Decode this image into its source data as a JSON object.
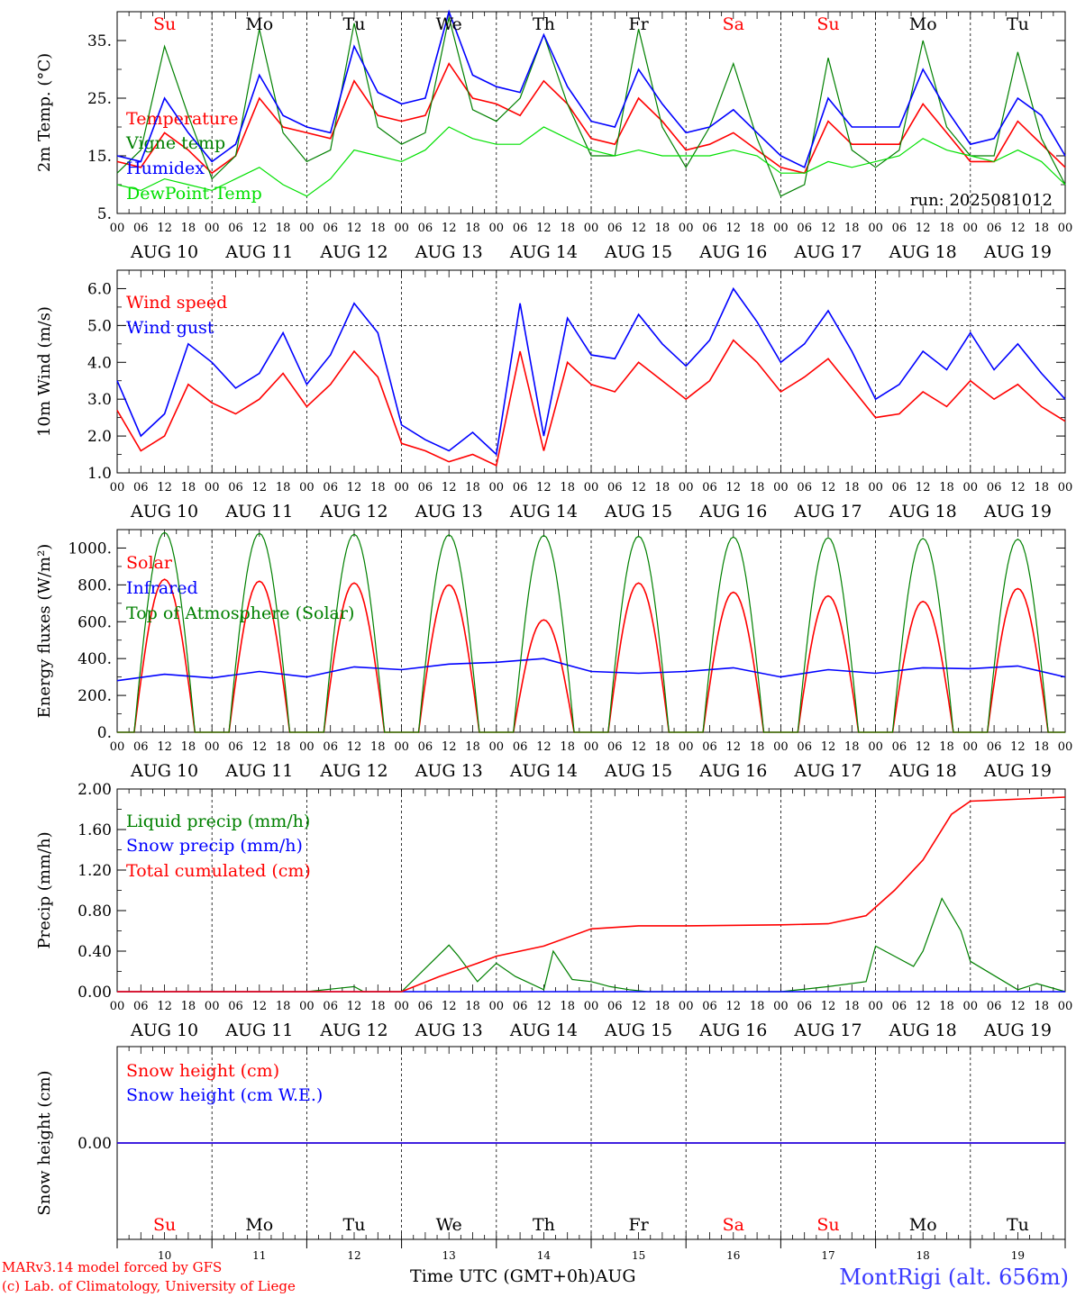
{
  "run_label": "run: 2025081012",
  "days": [
    "Su",
    "Mo",
    "Tu",
    "We",
    "Th",
    "Fr",
    "Sa",
    "Su",
    "Mo",
    "Tu"
  ],
  "weekend_days": [
    "Su",
    "Sa"
  ],
  "dates": [
    "AUG 10",
    "AUG 11",
    "AUG 12",
    "AUG 13",
    "AUG 14",
    "AUG 15",
    "AUG 16",
    "AUG 17",
    "AUG 18",
    "AUG 19"
  ],
  "day_numbers": [
    "10",
    "11",
    "12",
    "13",
    "14",
    "15",
    "16",
    "17",
    "18",
    "19"
  ],
  "hour_ticks": [
    "00",
    "06",
    "12",
    "18"
  ],
  "final_hour_tick": "00",
  "footer": {
    "model_line": "MARv3.14 model forced by GFS",
    "credit_line": "(c) Lab. of Climatology, University of Liege",
    "axis_title": "Time UTC (GMT+0h)",
    "axis_month": "AUG",
    "site": "MontRigi (alt. 656m)"
  },
  "colors": {
    "red": "#ff0000",
    "green": "#008000",
    "blue": "#0000ff",
    "lightgreen": "#00e000",
    "weekend": "#ff0000",
    "axis": "#000000"
  },
  "chart_data": [
    {
      "type": "line",
      "ylabel": "2m Temp. (°C)",
      "ylim": [
        5,
        40
      ],
      "yticks": [
        "5.",
        "15.",
        "25.",
        "35."
      ],
      "ytick_values": [
        5,
        15,
        25,
        35
      ],
      "x_unit": "days since AUG 10 00 UTC",
      "series": [
        {
          "name": "Temperature",
          "color": "#ff0000",
          "x": [
            0,
            0.25,
            0.5,
            0.75,
            1,
            1.25,
            1.5,
            1.75,
            2,
            2.25,
            2.5,
            2.75,
            3,
            3.25,
            3.5,
            3.75,
            4,
            4.25,
            4.5,
            4.75,
            5,
            5.25,
            5.5,
            5.75,
            6,
            6.25,
            6.5,
            6.75,
            7,
            7.25,
            7.5,
            7.75,
            8,
            8.25,
            8.5,
            8.75,
            9,
            9.25,
            9.5,
            9.75,
            10
          ],
          "values": [
            14,
            13,
            19,
            16,
            12,
            15,
            25,
            20,
            19,
            18,
            28,
            22,
            21,
            22,
            31,
            25,
            24,
            22,
            28,
            24,
            18,
            17,
            25,
            21,
            16,
            17,
            19,
            16,
            13,
            12,
            21,
            17,
            17,
            17,
            24,
            19,
            14,
            14,
            21,
            17,
            13
          ]
        },
        {
          "name": "Vigne temp",
          "color": "#008000",
          "x": [
            0,
            0.25,
            0.5,
            0.75,
            1,
            1.25,
            1.5,
            1.75,
            2,
            2.25,
            2.5,
            2.75,
            3,
            3.25,
            3.5,
            3.75,
            4,
            4.25,
            4.5,
            4.75,
            5,
            5.25,
            5.5,
            5.75,
            6,
            6.25,
            6.5,
            6.75,
            7,
            7.25,
            7.5,
            7.75,
            8,
            8.25,
            8.5,
            8.75,
            9,
            9.25,
            9.5,
            9.75,
            10
          ],
          "values": [
            12,
            16,
            34,
            22,
            11,
            15,
            37,
            19,
            14,
            16,
            38,
            20,
            17,
            19,
            39,
            23,
            21,
            25,
            36,
            24,
            15,
            15,
            37,
            20,
            13,
            20,
            31,
            18,
            8,
            10,
            32,
            16,
            13,
            16,
            35,
            20,
            15,
            15,
            33,
            18,
            10
          ]
        },
        {
          "name": "Humidex",
          "color": "#0000ff",
          "x": [
            0,
            0.25,
            0.5,
            0.75,
            1,
            1.25,
            1.5,
            1.75,
            2,
            2.25,
            2.5,
            2.75,
            3,
            3.25,
            3.5,
            3.75,
            4,
            4.25,
            4.5,
            4.75,
            5,
            5.25,
            5.5,
            5.75,
            6,
            6.25,
            6.5,
            6.75,
            7,
            7.25,
            7.5,
            7.75,
            8,
            8.25,
            8.5,
            8.75,
            9,
            9.25,
            9.5,
            9.75,
            10
          ],
          "values": [
            15,
            14,
            25,
            19,
            14,
            17,
            29,
            22,
            20,
            19,
            34,
            26,
            24,
            25,
            40,
            29,
            27,
            26,
            36,
            27,
            21,
            20,
            30,
            24,
            19,
            20,
            23,
            19,
            15,
            13,
            25,
            20,
            20,
            20,
            30,
            23,
            17,
            18,
            25,
            22,
            15
          ]
        },
        {
          "name": "DewPoint Temp",
          "color": "#00e000",
          "x": [
            0,
            0.25,
            0.5,
            0.75,
            1,
            1.25,
            1.5,
            1.75,
            2,
            2.25,
            2.5,
            2.75,
            3,
            3.25,
            3.5,
            3.75,
            4,
            4.25,
            4.5,
            4.75,
            5,
            5.25,
            5.5,
            5.75,
            6,
            6.25,
            6.5,
            6.75,
            7,
            7.25,
            7.5,
            7.75,
            8,
            8.25,
            8.5,
            8.75,
            9,
            9.25,
            9.5,
            9.75,
            10
          ],
          "values": [
            10,
            9,
            11,
            10,
            9,
            11,
            13,
            10,
            8,
            11,
            16,
            15,
            14,
            16,
            20,
            18,
            17,
            17,
            20,
            18,
            16,
            15,
            16,
            15,
            15,
            15,
            16,
            15,
            12,
            12,
            14,
            13,
            14,
            15,
            18,
            16,
            15,
            14,
            16,
            14,
            10
          ]
        }
      ]
    },
    {
      "type": "line",
      "ylabel": "10m Wind (m/s)",
      "ylim": [
        1,
        6.5
      ],
      "yticks": [
        "1.0",
        "2.0",
        "3.0",
        "4.0",
        "5.0",
        "6.0"
      ],
      "ytick_values": [
        1,
        2,
        3,
        4,
        5,
        6
      ],
      "hline": 5,
      "x_unit": "days since AUG 10 00 UTC",
      "series": [
        {
          "name": "Wind speed",
          "color": "#ff0000",
          "x": [
            0,
            0.25,
            0.5,
            0.75,
            1,
            1.25,
            1.5,
            1.75,
            2,
            2.25,
            2.5,
            2.75,
            3,
            3.25,
            3.5,
            3.75,
            4,
            4.25,
            4.5,
            4.75,
            5,
            5.25,
            5.5,
            5.75,
            6,
            6.25,
            6.5,
            6.75,
            7,
            7.25,
            7.5,
            7.75,
            8,
            8.25,
            8.5,
            8.75,
            9,
            9.25,
            9.5,
            9.75,
            10
          ],
          "values": [
            2.7,
            1.6,
            2.0,
            3.4,
            2.9,
            2.6,
            3.0,
            3.7,
            2.8,
            3.4,
            4.3,
            3.6,
            1.8,
            1.6,
            1.3,
            1.5,
            1.2,
            4.3,
            1.6,
            4.0,
            3.4,
            3.2,
            4.0,
            3.5,
            3.0,
            3.5,
            4.6,
            4.0,
            3.2,
            3.6,
            4.1,
            3.3,
            2.5,
            2.6,
            3.2,
            2.8,
            3.5,
            3.0,
            3.4,
            2.8,
            2.4
          ]
        },
        {
          "name": "Wind gust",
          "color": "#0000ff",
          "x": [
            0,
            0.25,
            0.5,
            0.75,
            1,
            1.25,
            1.5,
            1.75,
            2,
            2.25,
            2.5,
            2.75,
            3,
            3.25,
            3.5,
            3.75,
            4,
            4.25,
            4.5,
            4.75,
            5,
            5.25,
            5.5,
            5.75,
            6,
            6.25,
            6.5,
            6.75,
            7,
            7.25,
            7.5,
            7.75,
            8,
            8.25,
            8.5,
            8.75,
            9,
            9.25,
            9.5,
            9.75,
            10
          ],
          "values": [
            3.5,
            2.0,
            2.6,
            4.5,
            4.0,
            3.3,
            3.7,
            4.8,
            3.4,
            4.2,
            5.6,
            4.8,
            2.3,
            1.9,
            1.6,
            2.1,
            1.5,
            5.6,
            2.0,
            5.2,
            4.2,
            4.1,
            5.3,
            4.5,
            3.9,
            4.6,
            6.0,
            5.1,
            4.0,
            4.5,
            5.4,
            4.3,
            3.0,
            3.4,
            4.3,
            3.8,
            4.8,
            3.8,
            4.5,
            3.7,
            3.0
          ]
        }
      ]
    },
    {
      "type": "line",
      "ylabel": "Energy fluxes (W/m²)",
      "ylim": [
        0,
        1100
      ],
      "yticks": [
        "0.",
        "200.",
        "400.",
        "600.",
        "800.",
        "1000."
      ],
      "ytick_values": [
        0,
        200,
        400,
        600,
        800,
        1000
      ],
      "x_unit": "days since AUG 10 00 UTC",
      "series": [
        {
          "name": "Solar",
          "color": "#ff0000",
          "daily_peaks": [
            830,
            820,
            810,
            800,
            610,
            810,
            760,
            740,
            710,
            780
          ]
        },
        {
          "name": "Infrared",
          "color": "#0000ff",
          "x": [
            0,
            0.5,
            1,
            1.5,
            2,
            2.5,
            3,
            3.5,
            4,
            4.5,
            5,
            5.5,
            6,
            6.5,
            7,
            7.5,
            8,
            8.5,
            9,
            9.5,
            10
          ],
          "values": [
            280,
            315,
            295,
            330,
            300,
            355,
            340,
            370,
            380,
            400,
            330,
            320,
            330,
            350,
            300,
            340,
            320,
            350,
            345,
            360,
            300
          ]
        },
        {
          "name": "Top of Atmosphere (Solar)",
          "color": "#008000",
          "daily_peaks": [
            1085,
            1080,
            1075,
            1072,
            1068,
            1064,
            1060,
            1056,
            1052,
            1048
          ]
        }
      ]
    },
    {
      "type": "line",
      "ylabel": "Precip (mm/h)",
      "ylim": [
        0,
        2
      ],
      "yticks": [
        "0.00",
        "0.40",
        "0.80",
        "1.20",
        "1.60",
        "2.00"
      ],
      "ytick_values": [
        0,
        0.4,
        0.8,
        1.2,
        1.6,
        2.0
      ],
      "x_unit": "days since AUG 10 00 UTC",
      "series": [
        {
          "name": "Liquid precip (mm/h)",
          "color": "#008000",
          "x": [
            0,
            2.0,
            2.5,
            2.6,
            3.0,
            3.5,
            3.6,
            3.8,
            4.0,
            4.2,
            4.5,
            4.6,
            4.8,
            5.0,
            5.2,
            5.4,
            5.6,
            6.0,
            7.0,
            7.5,
            7.9,
            8.0,
            8.2,
            8.4,
            8.5,
            8.7,
            8.9,
            9.0,
            9.5,
            9.7,
            10
          ],
          "values": [
            0,
            0,
            0.05,
            0,
            0,
            0.46,
            0.35,
            0.1,
            0.28,
            0.15,
            0.02,
            0.4,
            0.12,
            0.1,
            0.05,
            0.02,
            0,
            0,
            0,
            0.05,
            0.1,
            0.45,
            0.35,
            0.25,
            0.4,
            0.92,
            0.6,
            0.3,
            0.02,
            0.08,
            0
          ]
        },
        {
          "name": "Snow precip (mm/h)",
          "color": "#0000ff",
          "x": [
            0,
            10
          ],
          "values": [
            0,
            0
          ]
        },
        {
          "name": "Total cumulated (cm)",
          "color": "#ff0000",
          "x": [
            0,
            3.0,
            3.4,
            3.8,
            4.0,
            4.5,
            5.0,
            5.5,
            6.0,
            7.0,
            7.5,
            7.9,
            8.2,
            8.5,
            8.8,
            9.0,
            10
          ],
          "values": [
            0,
            0,
            0.15,
            0.28,
            0.35,
            0.45,
            0.62,
            0.65,
            0.65,
            0.66,
            0.67,
            0.75,
            1.0,
            1.3,
            1.75,
            1.88,
            1.92
          ]
        }
      ]
    },
    {
      "type": "line",
      "ylabel": "Snow height (cm)",
      "ylim": [
        -1,
        1
      ],
      "yticks": [
        "0.00"
      ],
      "ytick_values": [
        0
      ],
      "x_unit": "days since AUG 10 00 UTC",
      "series": [
        {
          "name": "Snow height (cm)",
          "color": "#ff0000",
          "x": [
            0,
            10
          ],
          "values": [
            0,
            0
          ]
        },
        {
          "name": "Snow height (cm W.E.)",
          "color": "#0000ff",
          "x": [
            0,
            10
          ],
          "values": [
            0,
            0
          ]
        }
      ]
    }
  ]
}
